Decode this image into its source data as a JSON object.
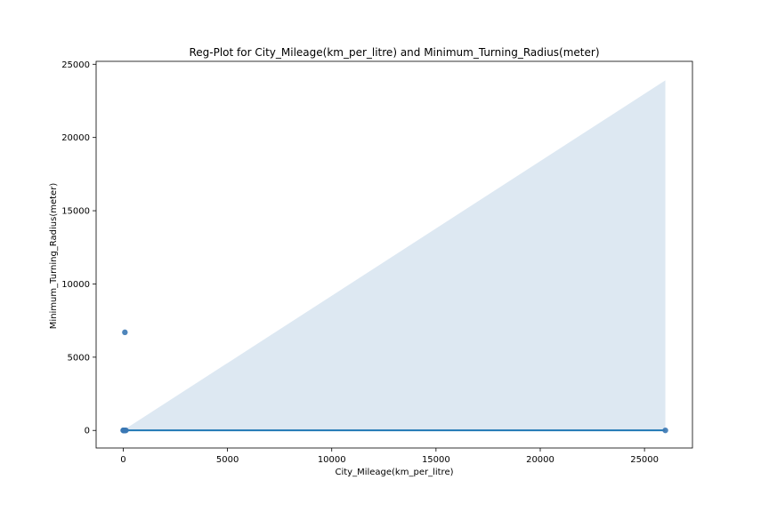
{
  "chart_data": {
    "type": "scatter",
    "title": "Reg-Plot for City_Mileage(km_per_litre) and Minimum_Turning_Radius(meter)",
    "xlabel": "City_Mileage(km_per_litre)",
    "ylabel": "Minimum_Turning_Radius(meter)",
    "xlim": [
      -1300,
      27300
    ],
    "ylim": [
      -1200,
      25200
    ],
    "x_ticks": [
      0,
      5000,
      10000,
      15000,
      20000,
      25000
    ],
    "y_ticks": [
      0,
      5000,
      10000,
      15000,
      20000,
      25000
    ],
    "grid": false,
    "legend": "none",
    "colors": {
      "points": "#3b78b4",
      "line": "#1f77b4",
      "band": "#dde8f2"
    },
    "points": [
      {
        "x": 0,
        "y": 5
      },
      {
        "x": 10,
        "y": 5
      },
      {
        "x": 15,
        "y": 5
      },
      {
        "x": 20,
        "y": 5
      },
      {
        "x": 30,
        "y": 5
      },
      {
        "x": 40,
        "y": 5
      },
      {
        "x": 60,
        "y": 5
      },
      {
        "x": 80,
        "y": 5
      },
      {
        "x": 100,
        "y": 5
      },
      {
        "x": 130,
        "y": 5
      },
      {
        "x": 80,
        "y": 6700
      },
      {
        "x": 26000,
        "y": 5
      }
    ],
    "regression_line": {
      "x": [
        0,
        26000
      ],
      "y": [
        5,
        5
      ]
    },
    "confidence_band": {
      "x": [
        0,
        26000
      ],
      "upper": [
        5,
        23900
      ],
      "lower": [
        5,
        5
      ]
    }
  }
}
